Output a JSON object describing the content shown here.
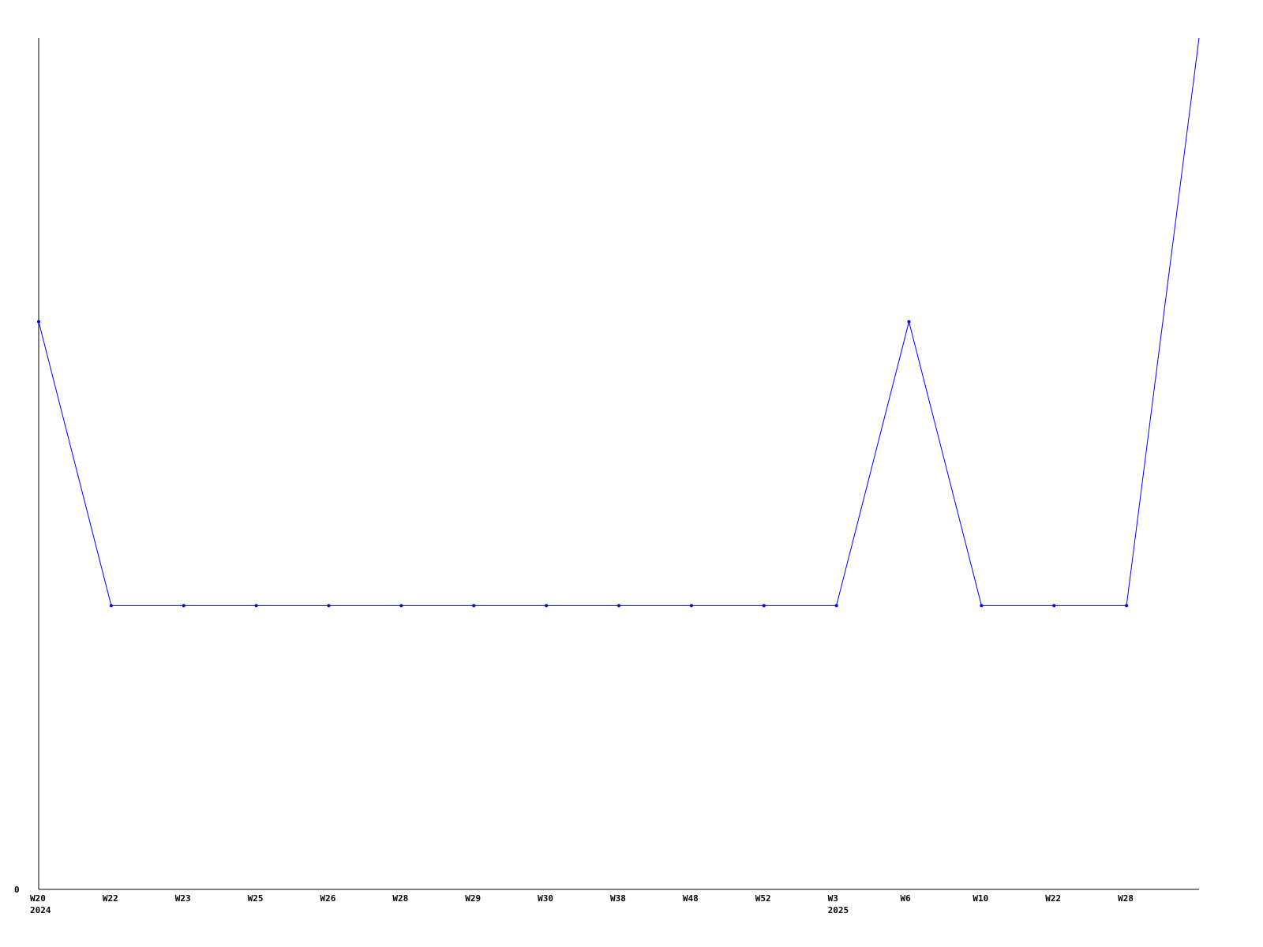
{
  "chart_data": {
    "type": "line",
    "title": "",
    "xlabel": "",
    "ylabel": "",
    "categories": [
      "W20",
      "W22",
      "W23",
      "W25",
      "W26",
      "W28",
      "W29",
      "W30",
      "W38",
      "W48",
      "W52",
      "W3",
      "W6",
      "W10",
      "W22",
      "W28",
      ""
    ],
    "year_labels": [
      {
        "index": 0,
        "label": "2024"
      },
      {
        "index": 11,
        "label": "2025"
      }
    ],
    "series": [
      {
        "values": [
          2,
          1,
          1,
          1,
          1,
          1,
          1,
          1,
          1,
          1,
          1,
          1,
          2,
          1,
          1,
          1,
          3
        ]
      }
    ],
    "y_tick_labels": [
      "0"
    ],
    "ylim": [
      0,
      3
    ],
    "grid": false,
    "legend": "none",
    "colors": {
      "line": "#0000ff",
      "axis": "#000000"
    }
  }
}
